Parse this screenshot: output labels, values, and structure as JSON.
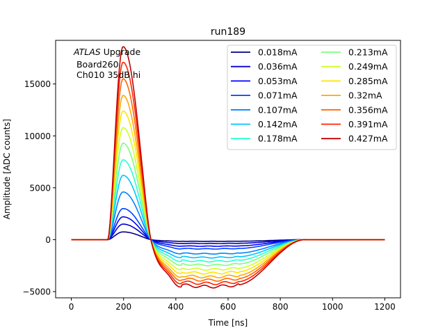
{
  "chart_data": {
    "type": "line",
    "title": "run189",
    "xlabel": "Time [ns]",
    "ylabel": "Amplitude [ADC counts]",
    "xlim": [
      -60,
      1260
    ],
    "ylim": [
      -5600,
      19200
    ],
    "xticks": [
      0,
      200,
      400,
      600,
      800,
      1000,
      1200
    ],
    "yticks": [
      -5000,
      0,
      5000,
      10000,
      15000
    ],
    "grid": false,
    "legend": {
      "position": "top-right",
      "columns": 2
    },
    "annotation": {
      "italic": "ATLAS",
      "rest": " Upgrade",
      "line2": " Board260",
      "line3": " Ch010 35dB hi"
    },
    "waveform": {
      "description_units": "time in ns",
      "baseline_end": 140,
      "peak_time": 198,
      "zero_crossing": 305,
      "undershoot_flat_start": 420,
      "undershoot_flat_end": 640,
      "recovery_end": 900,
      "time_end": 1200
    },
    "series": [
      {
        "name": "0.018mA",
        "color": "#00007f",
        "peak": 750,
        "undershoot": -150
      },
      {
        "name": "0.036mA",
        "color": "#0000c8",
        "peak": 1500,
        "undershoot": -350
      },
      {
        "name": "0.053mA",
        "color": "#0000ff",
        "peak": 2200,
        "undershoot": -600
      },
      {
        "name": "0.071mA",
        "color": "#0040ff",
        "peak": 3000,
        "undershoot": -850
      },
      {
        "name": "0.107mA",
        "color": "#0080ff",
        "peak": 4600,
        "undershoot": -1300
      },
      {
        "name": "0.142mA",
        "color": "#00c4ff",
        "peak": 6200,
        "undershoot": -1650
      },
      {
        "name": "0.178mA",
        "color": "#29ffce",
        "peak": 7700,
        "undershoot": -2000
      },
      {
        "name": "0.213mA",
        "color": "#7dff7a",
        "peak": 9300,
        "undershoot": -2350
      },
      {
        "name": "0.249mA",
        "color": "#ceff29",
        "peak": 10800,
        "undershoot": -2750
      },
      {
        "name": "0.285mA",
        "color": "#ffe500",
        "peak": 12400,
        "undershoot": -3100
      },
      {
        "name": "0.32mA",
        "color": "#ffa700",
        "peak": 13900,
        "undershoot": -3450
      },
      {
        "name": "0.356mA",
        "color": "#ff6800",
        "peak": 15500,
        "undershoot": -3750
      },
      {
        "name": "0.391mA",
        "color": "#ff2200",
        "peak": 17100,
        "undershoot": -4050
      },
      {
        "name": "0.427mA",
        "color": "#c00000",
        "peak": 18600,
        "undershoot": -4350
      }
    ]
  }
}
